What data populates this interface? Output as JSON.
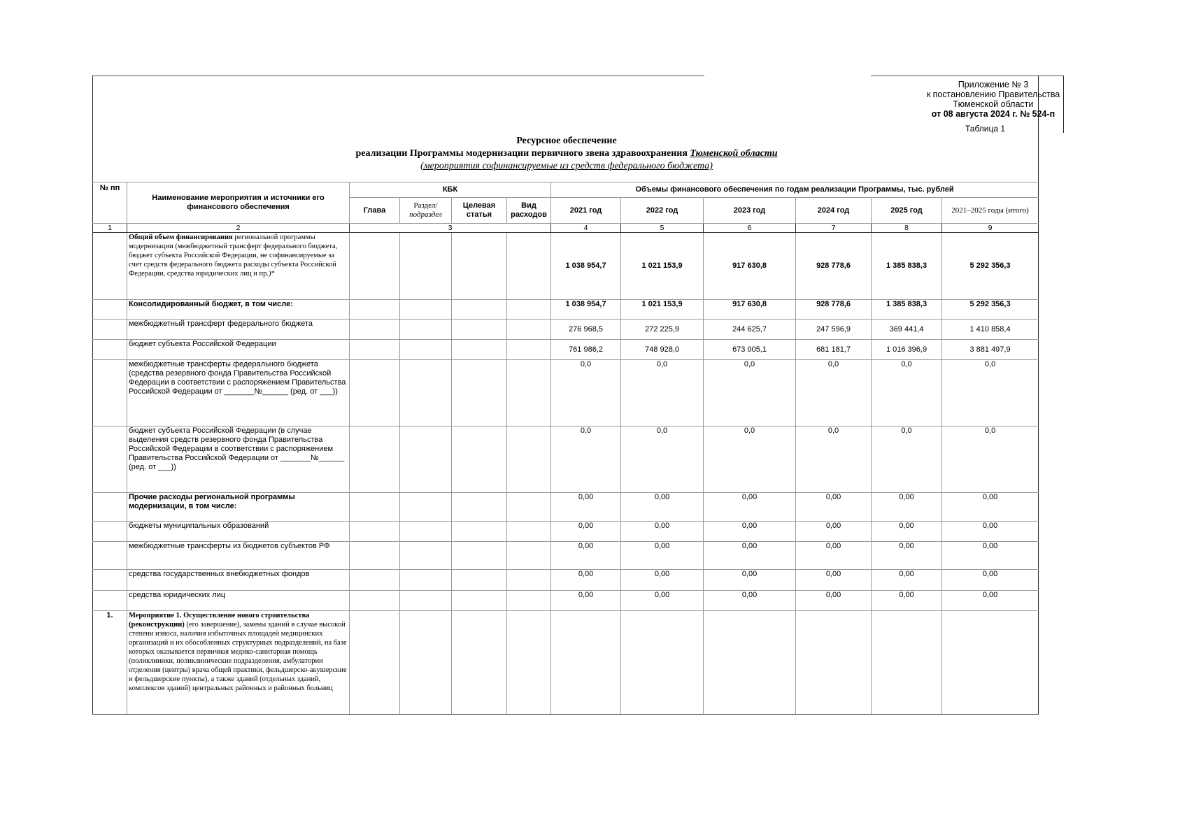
{
  "header": {
    "appendix_line1": "Приложение № 3",
    "appendix_line2": "к постановлению Правительства",
    "appendix_line3": "Тюменской области",
    "appendix_line4": "от 08 августа 2024 г. № 524-п",
    "table_number": "Таблица 1"
  },
  "title": {
    "line1": "Ресурсное обеспечение",
    "line2_prefix": "реализации Программы модернизации первичного звена здравоохранения ",
    "line2_region": "Тюменской области",
    "line3": "(мероприятия софинансируемые из средств федерального бюджета)"
  },
  "table_head": {
    "num": "№ пп",
    "name": "Наименование мероприятия и источники его финансового обеспечения",
    "kbk": "КБК",
    "kbk_cols": [
      "Глава",
      "Раздел/",
      "подраздел",
      "Целевая статья",
      "Вид расходов"
    ],
    "volumes": "Объемы финансового обеспечения по годам реализации Программы, тыс. рублей",
    "years": [
      "2021 год",
      "2022 год",
      "2023 год",
      "2024 год",
      "2025 год",
      "2021–2025 годы (итого)"
    ],
    "col_numbers": [
      "1",
      "2",
      "3",
      "4",
      "5",
      "6",
      "7",
      "8",
      "9"
    ]
  },
  "rows": [
    {
      "num": "",
      "name_bold": "Общий объем финансирования",
      "name": " региональной программы модернизации (межбюджетный трансферт федерального бюджета, бюджет субъекта Российской Федерации, не софинансируемые за счет средств федерального бюджета расходы субъекта Российской Федерации, средства юридических лиц и пр.)*",
      "serif": true,
      "values": [
        "1 038 954,7",
        "1 021 153,9",
        "917 630,8",
        "928 778,6",
        "1 385 838,3",
        "5 292 356,3"
      ],
      "bold_values": true,
      "valign": "mid"
    },
    {
      "num": "",
      "name_bold": "Консолидированный бюджет, в том числе:",
      "name": "",
      "values": [
        "1 038 954,7",
        "1 021 153,9",
        "917 630,8",
        "928 778,6",
        "1 385 838,3",
        "5 292 356,3"
      ],
      "bold_values": true,
      "valign": "top"
    },
    {
      "num": "",
      "name_bold": "",
      "name": "межбюджетный трансферт федерального бюджета",
      "values": [
        "276 968,5",
        "272 225,9",
        "244 625,7",
        "247 596,9",
        "369 441,4",
        "1 410 858,4"
      ],
      "valign": "mid"
    },
    {
      "num": "",
      "name_bold": "",
      "name": "бюджет субъекта Российской Федерации",
      "values": [
        "761 986,2",
        "748 928,0",
        "673 005,1",
        "681 181,7",
        "1 016 396,9",
        "3 881 497,9"
      ],
      "valign": "mid"
    },
    {
      "num": "",
      "name_bold": "",
      "name": "межбюджетные трансферты федерального бюджета (средства резервного фонда  Правительства Российской Федерации в соответствии с распоряжением Правительства Российской Федерации от _______№______ (ред. от ___))",
      "values": [
        "0,0",
        "0,0",
        "0,0",
        "0,0",
        "0,0",
        "0,0"
      ],
      "valign": "top"
    },
    {
      "num": "",
      "name_bold": "",
      "name": "бюджет субъекта Российской Федерации (в случае выделения средств резервного фонда  Правительства Российской Федерации в соответствии с распоряжением Правительства Российской Федерации от _______№______ (ред. от ___))",
      "values": [
        "0,0",
        "0,0",
        "0,0",
        "0,0",
        "0,0",
        "0,0"
      ],
      "valign": "top"
    },
    {
      "num": "",
      "name_bold": "Прочие расходы региональной программы модернизации, в том числе:",
      "name": "",
      "values": [
        "0,00",
        "0,00",
        "0,00",
        "0,00",
        "0,00",
        "0,00"
      ],
      "valign": "top"
    },
    {
      "num": "",
      "name_bold": "",
      "name": "бюджеты муниципальных образований",
      "values": [
        "0,00",
        "0,00",
        "0,00",
        "0,00",
        "0,00",
        "0,00"
      ],
      "valign": "top"
    },
    {
      "num": "",
      "name_bold": "",
      "name": "межбюджетные трансферты из бюджетов субъектов РФ",
      "values": [
        "0,00",
        "0,00",
        "0,00",
        "0,00",
        "0,00",
        "0,00"
      ],
      "valign": "top"
    },
    {
      "num": "",
      "name_bold": "",
      "name": "средства государственных внебюджетных фондов",
      "values": [
        "0,00",
        "0,00",
        "0,00",
        "0,00",
        "0,00",
        "0,00"
      ],
      "valign": "top"
    },
    {
      "num": "",
      "name_bold": "",
      "name": "средства юридических лиц",
      "values": [
        "0,00",
        "0,00",
        "0,00",
        "0,00",
        "0,00",
        "0,00"
      ],
      "valign": "top"
    },
    {
      "num": "1.",
      "name_bold": "Мероприятие 1. Осуществление нового строительства (реконструкции)",
      "name": " (его завершение), замены зданий в случае высокой степени износа, наличия избыточных площадей медицинских организаций и их обособленных структурных подразделений, на базе которых оказывается первичная медико-санитарная помощь (поликлиники, поликлинические подразделения, амбулатории отделения (центры) врача общей практики, фельдшерско-акушерские и фельдшерские пункты), а также зданий (отдельных зданий, комплексов зданий) центральных районных и районных больниц",
      "serif": true,
      "values": [
        "",
        "",
        "",
        "",
        "",
        ""
      ],
      "valign": "top"
    }
  ]
}
